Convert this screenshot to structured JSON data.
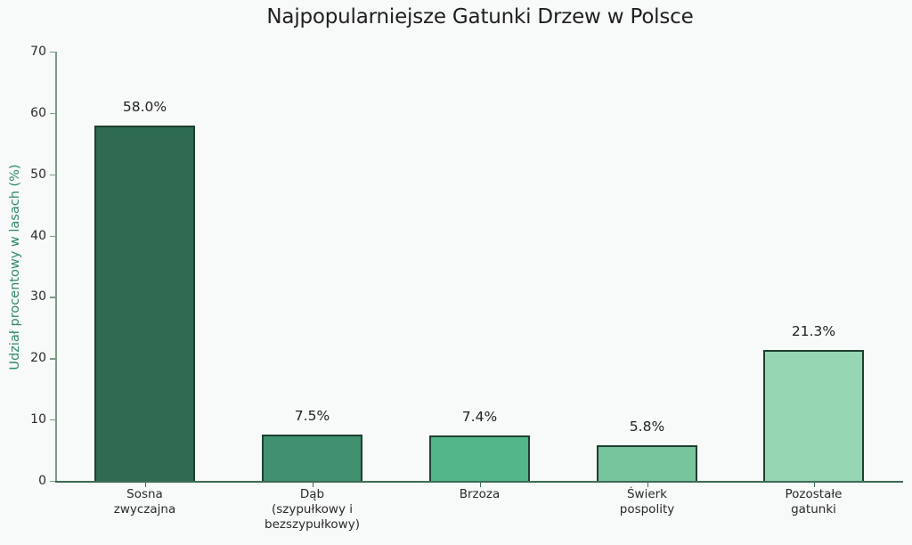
{
  "chart_data": {
    "type": "bar",
    "title": "Najpopularniejsze Gatunki Drzew w Polsce",
    "xlabel": "",
    "ylabel": "Udział procentowy w lasach (%)",
    "ylim": [
      0,
      70
    ],
    "yticks": [
      0,
      10,
      20,
      30,
      40,
      50,
      60,
      70
    ],
    "grid": false,
    "legend": null,
    "categories": [
      "Sosna zwyczajna",
      "Dąb (szypułkowy i bezszypułkowy)",
      "Brzoza",
      "Świerk pospolity",
      "Pozostałe gatunki"
    ],
    "category_labels_wrapped": [
      "Sosna\nzwyczajna",
      "Dąb\n(szypułkowy i\nbezszypułkowy)",
      "Brzoza",
      "Świerk\npospolity",
      "Pozostałe\ngatunki"
    ],
    "values": [
      58.0,
      7.5,
      7.4,
      5.8,
      21.3
    ],
    "value_labels": [
      "58.0%",
      "7.5%",
      "7.4%",
      "5.8%",
      "21.3%"
    ],
    "colors": [
      "#2e6b50",
      "#3f9170",
      "#52b68a",
      "#76c59c",
      "#97d6b2"
    ],
    "edge_color": "#1e3f30",
    "axis_label_color": "#2e8b63"
  }
}
